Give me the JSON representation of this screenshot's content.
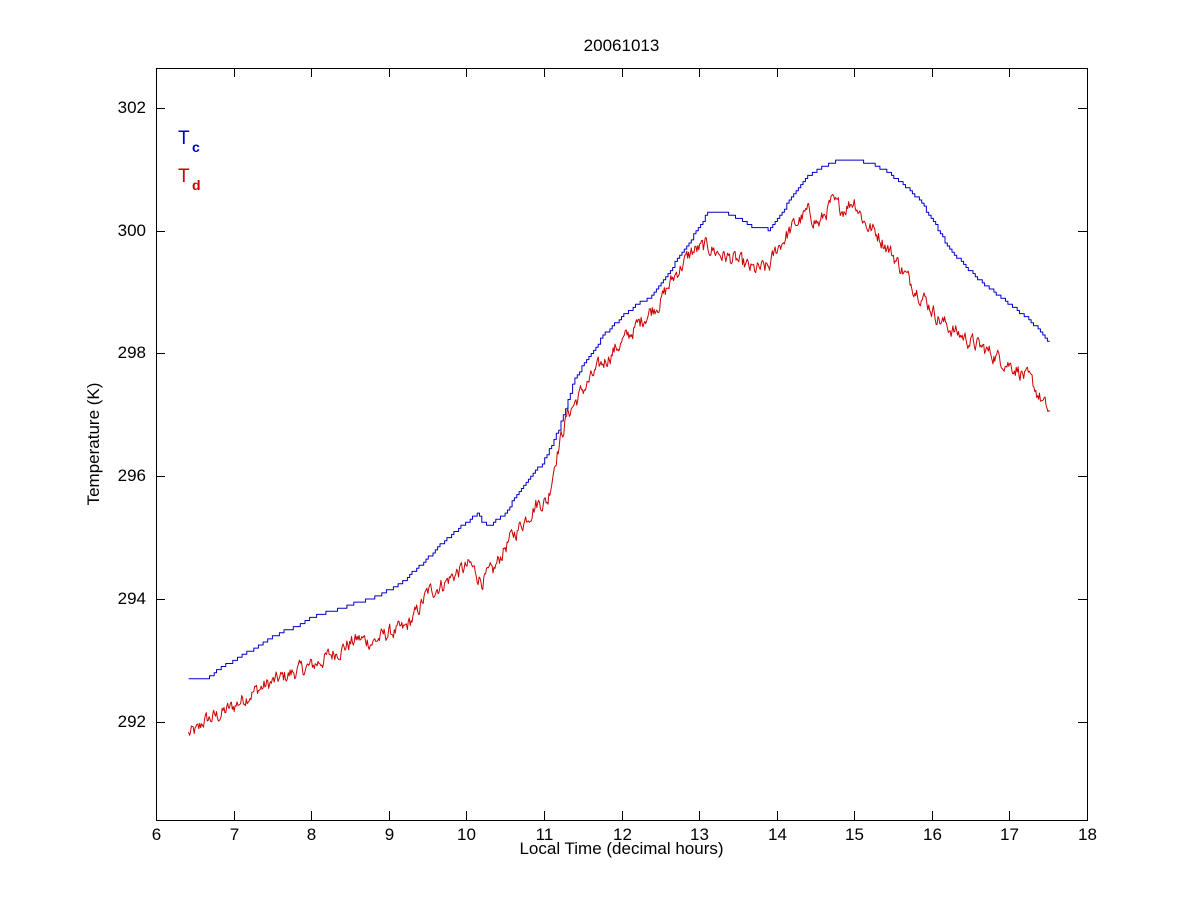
{
  "chart_data": {
    "type": "line",
    "title": "20061013",
    "xlabel": "Local Time (decimal hours)",
    "ylabel": "Temperature (K)",
    "xlim": [
      6,
      18
    ],
    "ylim": [
      290.4,
      302.65
    ],
    "xticks": [
      6,
      7,
      8,
      9,
      10,
      11,
      12,
      13,
      14,
      15,
      16,
      17,
      18
    ],
    "yticks": [
      292,
      294,
      296,
      298,
      300,
      302
    ],
    "grid": false,
    "legend_position": "top-left",
    "series": [
      {
        "name_main": "T",
        "name_sub": "c",
        "color": "#0000cc",
        "style": "stepped",
        "x": [
          6.42,
          6.65,
          6.8,
          7.0,
          7.2,
          7.4,
          7.6,
          7.8,
          8.0,
          8.2,
          8.4,
          8.6,
          8.8,
          9.0,
          9.2,
          9.4,
          9.6,
          9.8,
          10.0,
          10.15,
          10.2,
          10.3,
          10.5,
          10.6,
          10.8,
          11.0,
          11.2,
          11.4,
          11.6,
          11.8,
          12.0,
          12.2,
          12.4,
          12.6,
          12.8,
          13.0,
          13.1,
          13.3,
          13.5,
          13.7,
          13.9,
          14.0,
          14.2,
          14.4,
          14.6,
          14.8,
          15.0,
          15.2,
          15.4,
          15.6,
          15.8,
          16.0,
          16.2,
          16.4,
          16.6,
          16.8,
          17.0,
          17.2,
          17.4,
          17.52
        ],
        "y": [
          292.7,
          292.7,
          292.85,
          293.0,
          293.15,
          293.3,
          293.45,
          293.55,
          293.7,
          293.78,
          293.85,
          293.95,
          294.02,
          294.15,
          294.3,
          294.55,
          294.8,
          295.05,
          295.25,
          295.4,
          295.25,
          295.2,
          295.4,
          295.6,
          295.95,
          296.25,
          296.8,
          297.6,
          298.0,
          298.35,
          298.6,
          298.8,
          298.95,
          299.3,
          299.7,
          300.05,
          300.3,
          300.3,
          300.2,
          300.05,
          300.02,
          300.2,
          300.55,
          300.9,
          301.05,
          301.15,
          301.15,
          301.1,
          300.98,
          300.78,
          300.55,
          300.2,
          299.75,
          299.45,
          299.2,
          299.0,
          298.8,
          298.6,
          298.35,
          298.18
        ]
      },
      {
        "name_main": "T",
        "name_sub": "d",
        "color": "#cc0000",
        "style": "noisy",
        "x": [
          6.42,
          6.55,
          6.6,
          6.8,
          7.0,
          7.2,
          7.4,
          7.6,
          7.8,
          8.0,
          8.2,
          8.4,
          8.6,
          8.8,
          9.0,
          9.2,
          9.35,
          9.5,
          9.7,
          9.9,
          10.05,
          10.2,
          10.35,
          10.5,
          10.7,
          10.9,
          11.05,
          11.15,
          11.3,
          11.5,
          11.7,
          11.9,
          12.1,
          12.3,
          12.5,
          12.7,
          12.9,
          13.1,
          13.3,
          13.5,
          13.7,
          13.9,
          14.0,
          14.2,
          14.4,
          14.55,
          14.7,
          14.85,
          15.0,
          15.15,
          15.3,
          15.5,
          15.7,
          15.9,
          16.1,
          16.3,
          16.5,
          16.7,
          16.9,
          17.1,
          17.3,
          17.45,
          17.52
        ],
        "y": [
          291.8,
          291.85,
          292.0,
          292.1,
          292.25,
          292.45,
          292.58,
          292.7,
          292.82,
          292.9,
          293.05,
          293.2,
          293.35,
          293.3,
          293.45,
          293.5,
          293.75,
          294.1,
          294.25,
          294.45,
          294.55,
          294.3,
          294.45,
          294.85,
          295.2,
          295.55,
          295.6,
          296.3,
          297.0,
          297.4,
          297.75,
          298.05,
          298.3,
          298.6,
          298.85,
          299.3,
          299.65,
          299.75,
          299.6,
          299.5,
          299.35,
          299.4,
          299.7,
          300.05,
          300.3,
          300.1,
          300.45,
          300.35,
          300.5,
          300.1,
          299.95,
          299.6,
          299.2,
          298.9,
          298.55,
          298.35,
          298.2,
          298.05,
          297.9,
          297.75,
          297.5,
          297.15,
          297.03
        ]
      }
    ]
  }
}
